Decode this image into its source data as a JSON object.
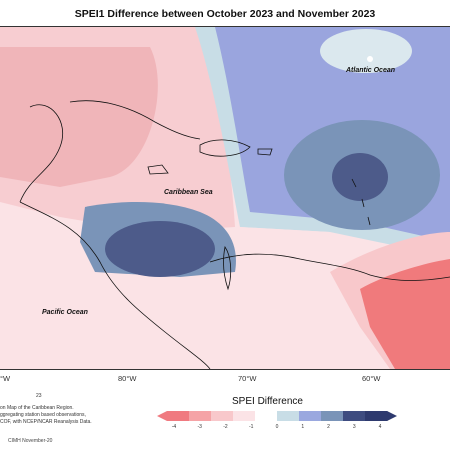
{
  "title": "SPEI1 Difference between October 2023 and November 2023",
  "labels": {
    "atlantic": "Atlantic Ocean",
    "caribbean": "Caribbean Sea",
    "pacific": "Pacific Ocean"
  },
  "longitudes": [
    "80°W",
    "70°W",
    "60°W",
    "°W"
  ],
  "legend": {
    "title": "SPEI Difference",
    "ticks": [
      "-4",
      "-3",
      "-2",
      "-1",
      "0",
      "1",
      "2",
      "3",
      "4"
    ],
    "colors": [
      "#f07a80",
      "#f5a3a6",
      "#f8c8cb",
      "#fbe3e6",
      "#ffffff",
      "#c8dde6",
      "#9aa8df",
      "#7a94b8",
      "#3e4c80",
      "#2e3a6e"
    ]
  },
  "notes": {
    "line0": "23",
    "line1": "on Map of the Caribbean Region.",
    "line2": "ggregating station based observations,",
    "line3": "COF, with NCEP/NCAR Reanalysis Data."
  },
  "credit": "CIMH November-20",
  "colors": {
    "pink_light": "#f7d9dc",
    "pink_mid": "#f0b5b9",
    "blue_light": "#c8dde6",
    "blue_mid": "#8f9fdc",
    "blue_dark": "#4d5b8a",
    "red": "#f07a7c"
  }
}
